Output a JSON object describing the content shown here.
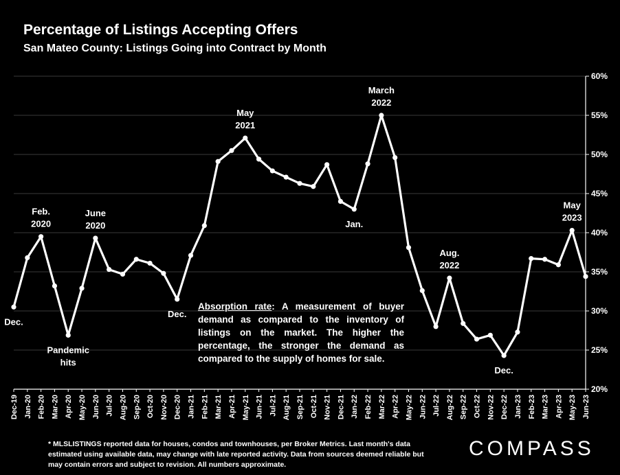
{
  "header": {
    "title": "Percentage of Listings Accepting Offers",
    "subtitle": "San Mateo County: Listings Going into Contract by Month"
  },
  "chart_data": {
    "type": "line",
    "x": [
      "Dec-19",
      "Jan-20",
      "Feb-20",
      "Mar-20",
      "Apr-20",
      "May-20",
      "Jun-20",
      "Jul-20",
      "Aug-20",
      "Sep-20",
      "Oct-20",
      "Nov-20",
      "Dec-20",
      "Jan-21",
      "Feb-21",
      "Mar-21",
      "Apr-21",
      "May-21",
      "Jun-21",
      "Jul-21",
      "Aug-21",
      "Sep-21",
      "Oct-21",
      "Nov-21",
      "Dec-21",
      "Jan-22",
      "Feb-22",
      "Mar-22",
      "Apr-22",
      "May-22",
      "Jun-22",
      "Jul-22",
      "Aug-22",
      "Sep-22",
      "Oct-22",
      "Nov-22",
      "Dec-22",
      "Jan-23",
      "Feb-23",
      "Mar-23",
      "Apr-23",
      "May-23",
      "Jun-23"
    ],
    "values": [
      30.5,
      36.8,
      39.5,
      33.2,
      26.9,
      32.9,
      39.3,
      35.3,
      34.7,
      36.6,
      36.1,
      34.8,
      31.5,
      37.1,
      40.9,
      49.1,
      50.5,
      52.1,
      49.4,
      47.9,
      47.1,
      46.3,
      45.9,
      48.7,
      44.0,
      43.0,
      48.8,
      55.0,
      49.6,
      38.1,
      32.6,
      28.0,
      34.2,
      28.4,
      26.4,
      26.9,
      24.3,
      27.3,
      36.7,
      36.6,
      35.9,
      40.3,
      34.4
    ],
    "ylim": [
      20,
      60
    ],
    "y_ticks": [
      "20%",
      "25%",
      "30%",
      "35%",
      "40%",
      "45%",
      "50%",
      "55%",
      "60%"
    ],
    "y_tick_values": [
      20,
      25,
      30,
      35,
      40,
      45,
      50,
      55,
      60
    ],
    "grid": true,
    "annotations": [
      {
        "index": 0,
        "lines": [
          "Dec."
        ],
        "pos": "below"
      },
      {
        "index": 2,
        "lines": [
          "Feb.",
          "2020"
        ],
        "pos": "above"
      },
      {
        "index": 4,
        "lines": [
          "Pandemic",
          "hits"
        ],
        "pos": "below"
      },
      {
        "index": 6,
        "lines": [
          "June",
          "2020"
        ],
        "pos": "above"
      },
      {
        "index": 12,
        "lines": [
          "Dec."
        ],
        "pos": "below"
      },
      {
        "index": 17,
        "lines": [
          "May",
          "2021"
        ],
        "pos": "above"
      },
      {
        "index": 25,
        "lines": [
          "Jan."
        ],
        "pos": "below"
      },
      {
        "index": 27,
        "lines": [
          "March",
          "2022"
        ],
        "pos": "above"
      },
      {
        "index": 32,
        "lines": [
          "Aug.",
          "2022"
        ],
        "pos": "above"
      },
      {
        "index": 36,
        "lines": [
          "Dec."
        ],
        "pos": "below"
      },
      {
        "index": 41,
        "lines": [
          "May",
          "2023"
        ],
        "pos": "above"
      }
    ]
  },
  "definition": {
    "term": "Absorption rate",
    "text": ":  A measurement of buyer demand as compared to the inventory of listings on the market. The higher the percentage, the stronger the demand as compared to the supply of homes for sale."
  },
  "footnote": "* MLSLISTINGS reported data for houses, condos and townhouses, per Broker Metrics. Last month's data estimated using available data, may change with late reported activity. Data from sources deemed reliable but may contain errors and subject to revision. All numbers approximate.",
  "logo": "COMPASS",
  "colors": {
    "background": "#000000",
    "line": "#ffffff",
    "grid": "#3a3a3a"
  }
}
